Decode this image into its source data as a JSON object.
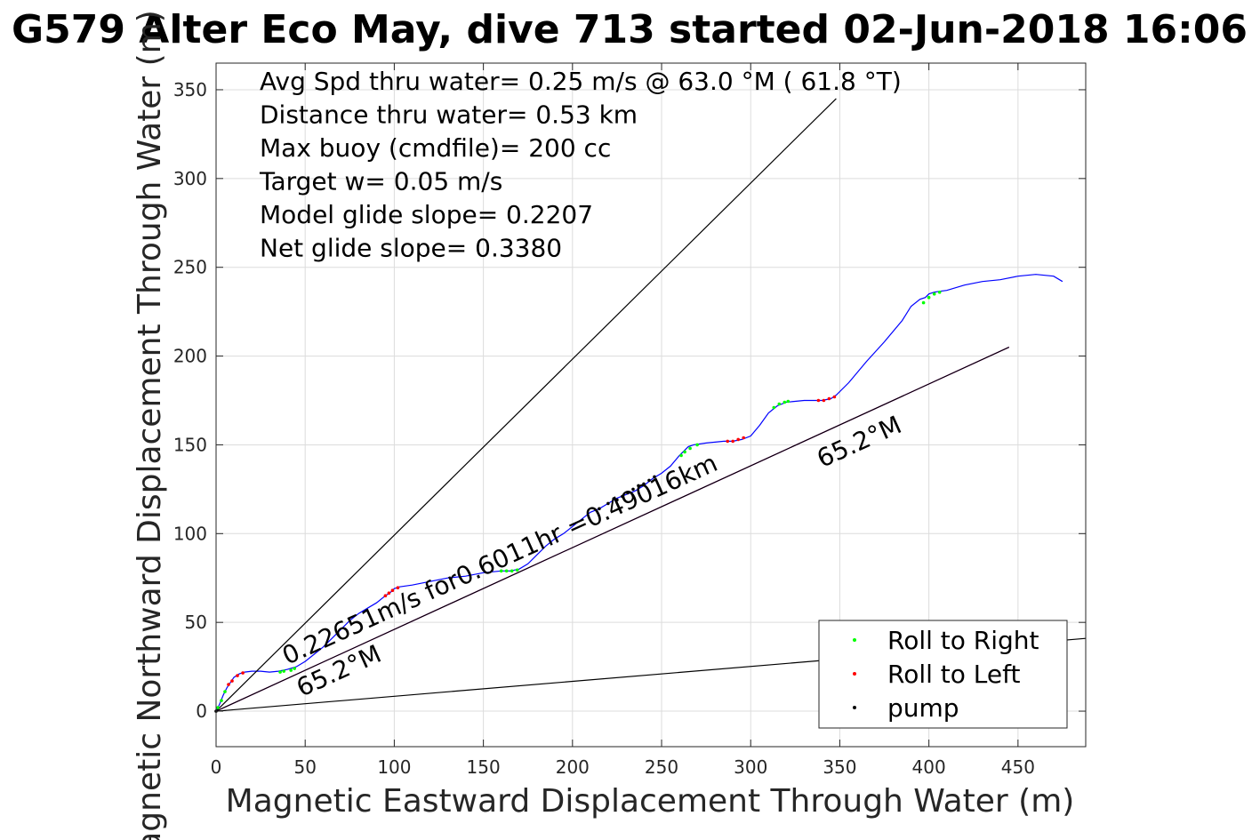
{
  "chart_data": {
    "type": "line",
    "title": "G579 Alter Eco May, dive 713 started 02-Jun-2018 16:06",
    "xlabel": "Magnetic Eastward Displacement Through Water (m)",
    "ylabel": "Magnetic Northward Displacement Through Water (m)",
    "xlim": [
      0,
      488
    ],
    "ylim": [
      -20,
      365
    ],
    "xticks": [
      0,
      50,
      100,
      150,
      200,
      250,
      300,
      350,
      400,
      450
    ],
    "yticks": [
      0,
      50,
      100,
      150,
      200,
      250,
      300,
      350
    ],
    "grid": true,
    "info_lines": [
      "Avg Spd thru water=  0.25 m/s @  63.0 °M ( 61.8 °T)",
      "Distance thru water=  0.53 km",
      "Max buoy (cmdfile)= 200 cc",
      "Target w= 0.05 m/s",
      "Model glide slope= 0.2207",
      "Net glide slope= 0.3380"
    ],
    "annotations": [
      {
        "text": "0.22651m/s for0.6011hr =0.49016km",
        "x": 40,
        "y": 26,
        "angle_deg": 24.4
      },
      {
        "text": "65.2°M",
        "x": 48,
        "y": 8,
        "angle_deg": 24.4
      },
      {
        "text": "65.2°M",
        "x": 340,
        "y": 137,
        "angle_deg": 24.4
      }
    ],
    "legend": {
      "position": "bottom-right",
      "entries": [
        {
          "label": "Roll to Right",
          "color": "#00ff00"
        },
        {
          "label": "Roll to Left",
          "color": "#ff0000"
        },
        {
          "label": "pump",
          "color": "#000000"
        }
      ]
    },
    "series": [
      {
        "kind": "track",
        "color": "#0000ff",
        "x": [
          0,
          2,
          4,
          6,
          8,
          10,
          13,
          16,
          20,
          25,
          30,
          35,
          40,
          45,
          50,
          55,
          60,
          65,
          70,
          75,
          80,
          85,
          90,
          95,
          98,
          100,
          103,
          110,
          120,
          130,
          140,
          150,
          155,
          160,
          165,
          170,
          175,
          180,
          185,
          190,
          195,
          200,
          205,
          210,
          215,
          220,
          225,
          230,
          235,
          240,
          245,
          250,
          255,
          260,
          263,
          265,
          268,
          275,
          285,
          290,
          295,
          300,
          305,
          310,
          315,
          320,
          330,
          340,
          345,
          348,
          355,
          365,
          375,
          385,
          390,
          395,
          398,
          400,
          403,
          406,
          410,
          420,
          430,
          440,
          450,
          460,
          470,
          475
        ],
        "y": [
          0,
          4,
          9,
          13,
          16,
          19,
          21,
          22,
          22.5,
          22.5,
          22,
          22.5,
          23.5,
          25,
          28,
          32,
          36,
          41,
          46,
          51,
          55,
          58,
          61,
          65,
          67,
          69,
          70,
          71,
          73,
          75,
          76,
          78,
          78.5,
          79,
          79,
          80,
          83,
          88,
          93,
          97,
          100,
          104,
          108,
          112,
          114,
          117,
          120,
          122,
          124,
          127,
          131,
          134,
          138,
          144,
          147,
          149,
          150,
          151,
          152,
          152,
          153,
          155,
          161,
          168,
          172,
          174,
          175,
          175,
          176,
          178,
          185,
          197,
          208,
          220,
          228,
          232,
          233,
          235,
          236,
          236.5,
          237,
          240,
          242,
          243,
          245,
          246,
          245,
          242
        ]
      },
      {
        "kind": "marks",
        "label": "Roll to Right",
        "color": "#00ff00",
        "x": [
          1,
          3,
          5,
          36,
          38,
          42,
          44,
          160,
          163,
          166,
          169,
          261,
          263,
          266,
          270,
          313,
          316,
          319,
          321,
          397,
          400,
          403,
          406
        ],
        "y": [
          2,
          6,
          11,
          22,
          22.5,
          23,
          24,
          79,
          79,
          79,
          79.5,
          144,
          146,
          148,
          150,
          171,
          173,
          174,
          174.5,
          230,
          233,
          235,
          236
        ]
      },
      {
        "kind": "marks",
        "label": "Roll to Left",
        "color": "#ff0000",
        "x": [
          7,
          9,
          12,
          15,
          95,
          97,
          99,
          102,
          287,
          290,
          293,
          296,
          338,
          341,
          344,
          347
        ],
        "y": [
          15,
          17,
          20,
          21.5,
          65,
          66.5,
          68,
          69.5,
          152,
          152,
          153,
          154,
          175,
          175,
          176,
          177
        ]
      },
      {
        "kind": "marks",
        "label": "pump",
        "color": "#000000",
        "x": [
          0,
          215,
          220,
          225,
          228,
          231,
          234,
          237,
          240,
          243,
          246
        ],
        "y": [
          0,
          114,
          117,
          119,
          121,
          123,
          125,
          127,
          128,
          130,
          132
        ]
      },
      {
        "kind": "line",
        "color": "#ff00ff",
        "x": [
          0,
          445
        ],
        "y": [
          0,
          205
        ]
      },
      {
        "kind": "line",
        "color": "#000000",
        "x": [
          0,
          445
        ],
        "y": [
          0,
          205
        ]
      },
      {
        "kind": "line",
        "color": "#000000",
        "x": [
          0,
          348
        ],
        "y": [
          0,
          345
        ]
      },
      {
        "kind": "line",
        "color": "#000000",
        "x": [
          0,
          488
        ],
        "y": [
          0,
          41
        ]
      }
    ]
  }
}
